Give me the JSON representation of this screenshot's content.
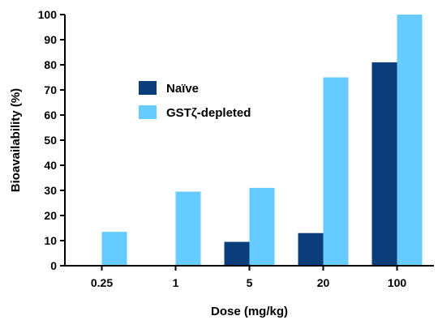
{
  "chart_data": {
    "type": "bar",
    "title": "",
    "xlabel": "Dose (mg/kg)",
    "ylabel": "Bioavailability (%)",
    "ylim": [
      0,
      100
    ],
    "yticks": [
      "0",
      "10",
      "20",
      "30",
      "40",
      "50",
      "60",
      "70",
      "80",
      "90",
      "100"
    ],
    "categories": [
      "0.25",
      "1",
      "5",
      "20",
      "100"
    ],
    "series": [
      {
        "name": "Naïve",
        "color": "#0b3d7a",
        "values": [
          0,
          0,
          9.5,
          13,
          81
        ]
      },
      {
        "name": "GSTζ-depleted",
        "color": "#66ccff",
        "values": [
          13.5,
          29.5,
          31,
          75,
          100
        ]
      }
    ],
    "legend_position": "upper-left-inside",
    "grid": false
  }
}
